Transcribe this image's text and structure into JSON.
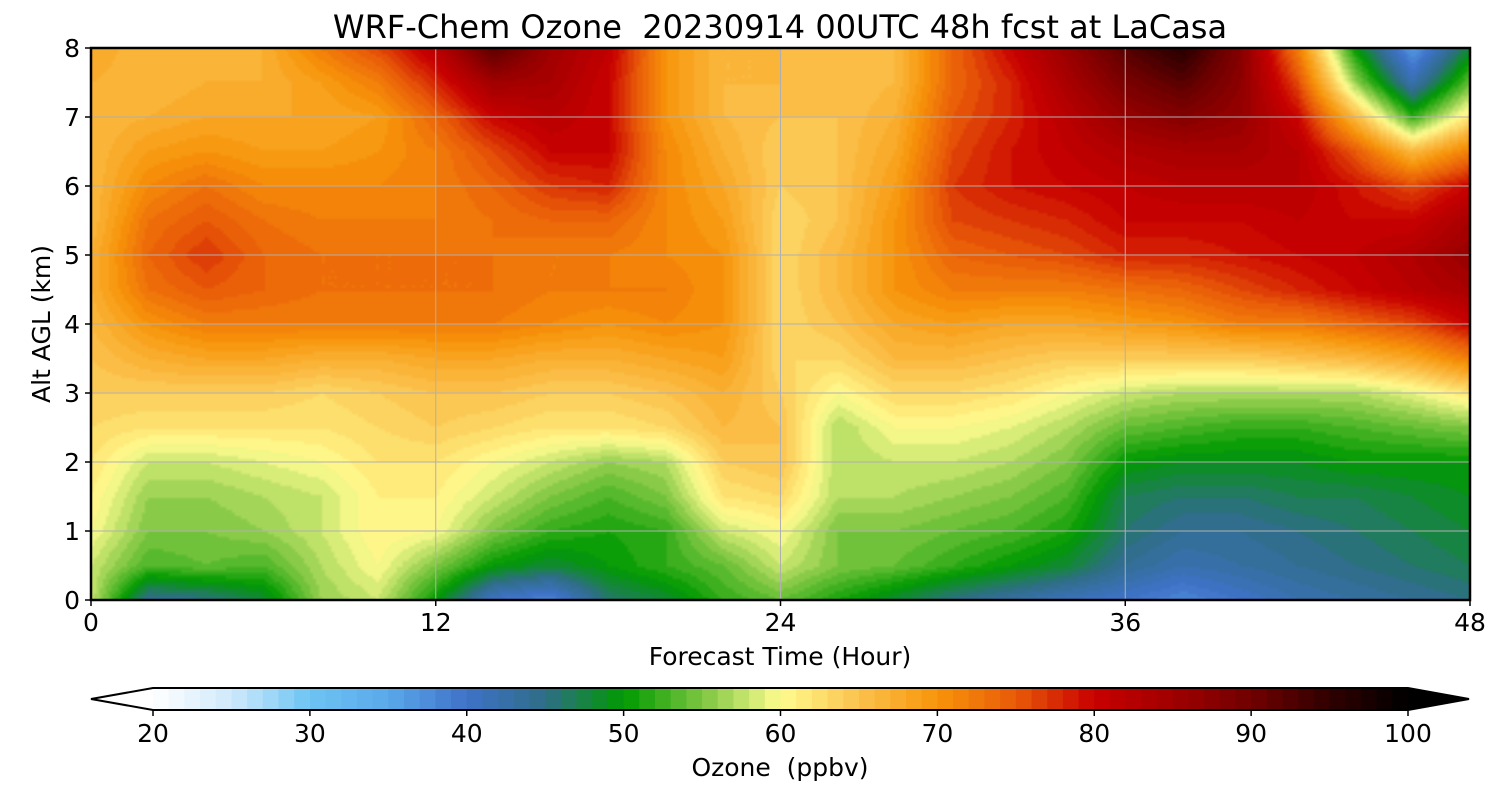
{
  "chart_data": {
    "type": "heatmap",
    "title": "WRF-Chem Ozone  20230914 00UTC 48h fcst at LaCasa",
    "xlabel": "Forecast Time (Hour)",
    "ylabel": "Alt AGL (km)",
    "xlim": [
      0,
      48
    ],
    "ylim": [
      0,
      8
    ],
    "x_ticks": [
      0,
      12,
      24,
      36,
      48
    ],
    "y_ticks": [
      0,
      1,
      2,
      3,
      4,
      5,
      6,
      7,
      8
    ],
    "grid": true,
    "colorbar": {
      "label": "Ozone  (ppbv)",
      "min": 20,
      "max": 100,
      "step": 1,
      "extend": "both",
      "ticks": [
        20,
        30,
        40,
        50,
        60,
        70,
        80,
        90,
        100
      ],
      "colormap": [
        [
          20,
          "#ffffff"
        ],
        [
          25,
          "#cfe9fb"
        ],
        [
          30,
          "#6cc4f3"
        ],
        [
          35,
          "#5aa8ea"
        ],
        [
          40,
          "#3f72c8"
        ],
        [
          45,
          "#2f6e88"
        ],
        [
          50,
          "#009900"
        ],
        [
          55,
          "#7cc640"
        ],
        [
          60,
          "#fffc90"
        ],
        [
          65,
          "#fbc24c"
        ],
        [
          70,
          "#f7940a"
        ],
        [
          75,
          "#e85a08"
        ],
        [
          80,
          "#c80000"
        ],
        [
          85,
          "#a00000"
        ],
        [
          90,
          "#700000"
        ],
        [
          95,
          "#300000"
        ],
        [
          100,
          "#000000"
        ]
      ]
    },
    "x": [
      0,
      2,
      4,
      6,
      8,
      10,
      12,
      14,
      16,
      18,
      20,
      22,
      24,
      26,
      28,
      30,
      32,
      34,
      36,
      38,
      40,
      42,
      44,
      46,
      48
    ],
    "y": [
      0,
      0.5,
      1,
      1.5,
      2,
      2.5,
      3,
      3.5,
      4,
      4.5,
      5,
      5.5,
      6,
      6.5,
      7,
      7.5,
      8
    ],
    "z": [
      [
        58,
        44,
        45,
        48,
        56,
        58,
        50,
        40,
        38,
        46,
        48,
        52,
        54,
        51,
        48,
        45,
        43,
        41,
        40,
        38,
        40,
        42,
        43,
        44,
        45
      ],
      [
        58,
        53,
        54,
        53,
        57,
        60,
        55,
        50,
        48,
        50,
        52,
        54,
        58,
        55,
        54,
        52,
        50,
        48,
        44,
        42,
        43,
        44,
        45,
        46,
        47
      ],
      [
        60,
        55,
        55,
        56,
        58,
        61,
        60,
        55,
        52,
        51,
        52,
        58,
        60,
        55,
        55,
        54,
        53,
        51,
        46,
        44,
        44,
        45,
        46,
        47,
        48
      ],
      [
        61,
        56,
        56,
        57,
        58,
        61,
        61,
        58,
        55,
        53,
        55,
        62,
        63,
        57,
        57,
        56,
        55,
        53,
        47,
        46,
        46,
        47,
        47,
        48,
        49
      ],
      [
        62,
        58,
        58,
        59,
        60,
        62,
        62,
        60,
        58,
        56,
        57,
        64,
        65,
        57,
        58,
        58,
        57,
        55,
        50,
        49,
        49,
        49,
        50,
        50,
        50
      ],
      [
        63,
        62,
        62,
        62,
        62,
        63,
        64,
        63,
        62,
        62,
        63,
        66,
        65,
        57,
        60,
        60,
        59,
        57,
        54,
        53,
        52,
        52,
        53,
        54,
        55
      ],
      [
        64,
        64,
        64,
        64,
        63,
        64,
        65,
        65,
        64,
        64,
        65,
        67,
        64,
        60,
        63,
        63,
        62,
        60,
        58,
        57,
        57,
        57,
        57,
        59,
        62
      ],
      [
        65,
        67,
        68,
        68,
        67,
        67,
        68,
        68,
        67,
        67,
        68,
        69,
        63,
        63,
        66,
        66,
        65,
        64,
        64,
        64,
        64,
        65,
        66,
        68,
        72
      ],
      [
        66,
        70,
        72,
        72,
        72,
        72,
        72,
        72,
        71,
        70,
        71,
        70,
        63,
        65,
        68,
        69,
        68,
        68,
        69,
        70,
        72,
        72,
        74,
        76,
        80
      ],
      [
        67,
        73,
        75,
        74,
        73,
        73,
        73,
        73,
        72,
        72,
        72,
        70,
        63,
        66,
        70,
        72,
        72,
        72,
        73,
        74,
        76,
        78,
        80,
        82,
        84
      ],
      [
        67,
        74,
        77,
        74,
        73,
        73,
        73,
        73,
        72,
        72,
        71,
        70,
        63,
        66,
        70,
        74,
        75,
        76,
        78,
        78,
        79,
        80,
        81,
        83,
        86
      ],
      [
        66,
        73,
        75,
        73,
        72,
        72,
        72,
        73,
        74,
        74,
        71,
        69,
        63,
        65,
        70,
        76,
        77,
        78,
        80,
        80,
        80,
        81,
        80,
        80,
        84
      ],
      [
        66,
        71,
        73,
        71,
        71,
        71,
        72,
        74,
        77,
        78,
        71,
        68,
        64,
        65,
        69,
        77,
        79,
        80,
        81,
        82,
        82,
        82,
        79,
        76,
        80
      ],
      [
        66,
        69,
        70,
        69,
        69,
        70,
        72,
        76,
        80,
        80,
        71,
        67,
        64,
        65,
        68,
        76,
        79,
        81,
        83,
        84,
        84,
        82,
        75,
        66,
        72
      ],
      [
        66,
        67,
        68,
        68,
        68,
        69,
        74,
        80,
        82,
        80,
        70,
        66,
        65,
        65,
        67,
        75,
        78,
        82,
        86,
        88,
        86,
        80,
        66,
        52,
        62
      ],
      [
        67,
        66,
        67,
        67,
        69,
        72,
        78,
        85,
        84,
        80,
        70,
        66,
        66,
        65,
        66,
        74,
        78,
        84,
        89,
        92,
        87,
        76,
        56,
        42,
        54
      ],
      [
        68,
        66,
        66,
        67,
        72,
        76,
        82,
        92,
        85,
        81,
        70,
        66,
        66,
        65,
        66,
        74,
        80,
        86,
        92,
        96,
        88,
        72,
        50,
        36,
        48
      ]
    ]
  }
}
